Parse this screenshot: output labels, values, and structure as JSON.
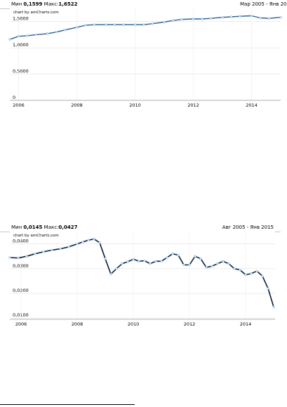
{
  "chart_data": [
    {
      "type": "line",
      "header_min_label": "Мин",
      "header_min_value": "0,1599",
      "header_max_label": "Макс:",
      "header_max_value": "1,6522",
      "period": "Мар 2005 - Янв 20",
      "credit": "chart by amCharts.com",
      "title": "",
      "xlabel": "",
      "ylabel": "",
      "ylim": [
        0,
        1.75
      ],
      "y_ticks": [
        0,
        0.5,
        1.0,
        1.5
      ],
      "y_tick_labels": [
        "0",
        "0,5000",
        "1,0000",
        "1,5000"
      ],
      "xlim": [
        2005.7,
        2015.0
      ],
      "x_ticks": [
        2006,
        2008,
        2010,
        2012,
        2014
      ],
      "x_tick_labels": [
        "2006",
        "2008",
        "2010",
        "2012",
        "2014"
      ],
      "grid": true,
      "series": [
        {
          "x": [
            2005.7,
            2006.0,
            2006.3,
            2006.6,
            2007.0,
            2007.3,
            2007.6,
            2008.0,
            2008.3,
            2008.6,
            2009.0,
            2009.3,
            2009.6,
            2010.0,
            2010.3,
            2010.6,
            2011.0,
            2011.3,
            2011.6,
            2012.0,
            2012.3,
            2012.6,
            2013.0,
            2013.3,
            2013.6,
            2014.0,
            2014.3,
            2014.6,
            2015.0
          ],
          "values": [
            1.16,
            1.22,
            1.23,
            1.25,
            1.27,
            1.3,
            1.34,
            1.39,
            1.43,
            1.44,
            1.44,
            1.44,
            1.44,
            1.44,
            1.44,
            1.46,
            1.49,
            1.52,
            1.54,
            1.55,
            1.55,
            1.56,
            1.58,
            1.59,
            1.6,
            1.61,
            1.57,
            1.56,
            1.58
          ]
        }
      ]
    },
    {
      "type": "line",
      "header_min_label": "Мин",
      "header_min_value": "0,0145",
      "header_max_label": "Макс:",
      "header_max_value": "0,0427",
      "period": "Авг 2005 - Янв 2015",
      "credit": "chart by amCharts.com",
      "title": "",
      "xlabel": "",
      "ylabel": "",
      "ylim": [
        0.0095,
        0.045
      ],
      "y_ticks": [
        0.01,
        0.02,
        0.03,
        0.04
      ],
      "y_tick_labels": [
        "0,0100",
        "0,0200",
        "0,0300",
        "0,0400"
      ],
      "xlim": [
        2005.6,
        2015.05
      ],
      "x_ticks": [
        2006,
        2008,
        2010,
        2012,
        2014
      ],
      "x_tick_labels": [
        "2006",
        "2008",
        "2010",
        "2012",
        "2014"
      ],
      "grid": true,
      "series": [
        {
          "x": [
            2005.6,
            2005.9,
            2006.2,
            2006.5,
            2006.8,
            2007.1,
            2007.4,
            2007.7,
            2008.0,
            2008.2,
            2008.4,
            2008.6,
            2008.8,
            2009.0,
            2009.2,
            2009.4,
            2009.6,
            2009.8,
            2010.0,
            2010.2,
            2010.4,
            2010.6,
            2010.8,
            2011.0,
            2011.2,
            2011.4,
            2011.6,
            2011.8,
            2012.0,
            2012.2,
            2012.4,
            2012.6,
            2012.8,
            2013.0,
            2013.2,
            2013.4,
            2013.6,
            2013.8,
            2014.0,
            2014.2,
            2014.4,
            2014.6,
            2014.8,
            2015.0
          ],
          "values": [
            0.0345,
            0.0343,
            0.035,
            0.036,
            0.0368,
            0.0375,
            0.038,
            0.0388,
            0.04,
            0.0408,
            0.0415,
            0.042,
            0.0405,
            0.034,
            0.0278,
            0.03,
            0.032,
            0.0328,
            0.0338,
            0.033,
            0.0332,
            0.032,
            0.033,
            0.033,
            0.0345,
            0.036,
            0.0355,
            0.0315,
            0.0315,
            0.035,
            0.034,
            0.0305,
            0.031,
            0.032,
            0.033,
            0.032,
            0.03,
            0.0295,
            0.0275,
            0.028,
            0.029,
            0.027,
            0.022,
            0.0145
          ]
        }
      ]
    }
  ]
}
